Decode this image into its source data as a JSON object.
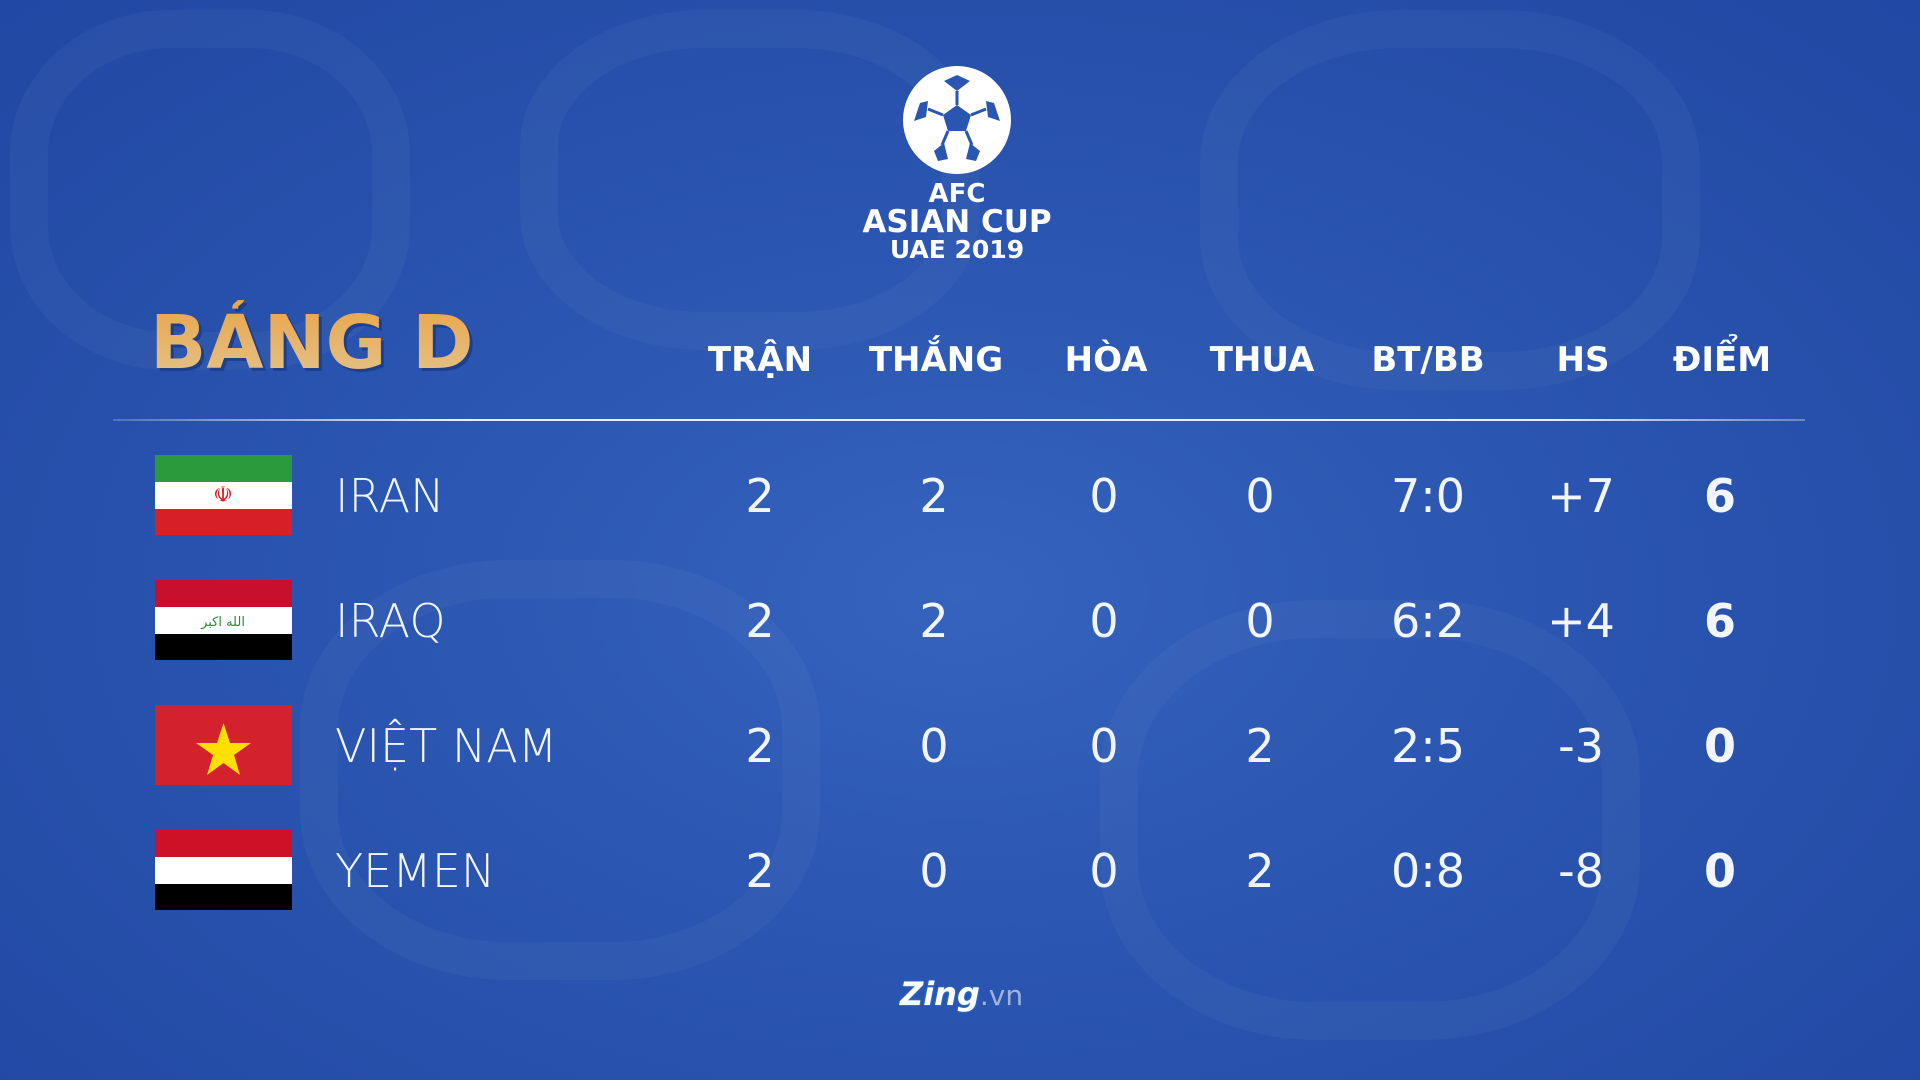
{
  "logo": {
    "line1": "AFC",
    "line2": "ASIAN CUP",
    "line3": "UAE 2019"
  },
  "title": "BẢNG D",
  "columns": [
    "TRẬN",
    "THẮNG",
    "HÒA",
    "THUA",
    "BT/BB",
    "HS",
    "ĐIỂM"
  ],
  "rows": [
    {
      "team": "IRAN",
      "flag": "iran-flag",
      "values": [
        "2",
        "2",
        "0",
        "0",
        "7:0",
        "+7",
        "6"
      ]
    },
    {
      "team": "IRAQ",
      "flag": "iraq-flag",
      "values": [
        "2",
        "2",
        "0",
        "0",
        "6:2",
        "+4",
        "6"
      ]
    },
    {
      "team": "VIỆT NAM",
      "flag": "vietnam-flag",
      "values": [
        "2",
        "0",
        "0",
        "2",
        "2:5",
        "-3",
        "0"
      ]
    },
    {
      "team": "YEMEN",
      "flag": "yemen-flag",
      "values": [
        "2",
        "0",
        "0",
        "2",
        "0:8",
        "-8",
        "0"
      ]
    }
  ],
  "footer": {
    "brand": "Zing",
    "suffix": ".vn"
  },
  "colors": {
    "background": "#2a55b0",
    "title": "#e8ad55",
    "text": "#ffffff"
  }
}
